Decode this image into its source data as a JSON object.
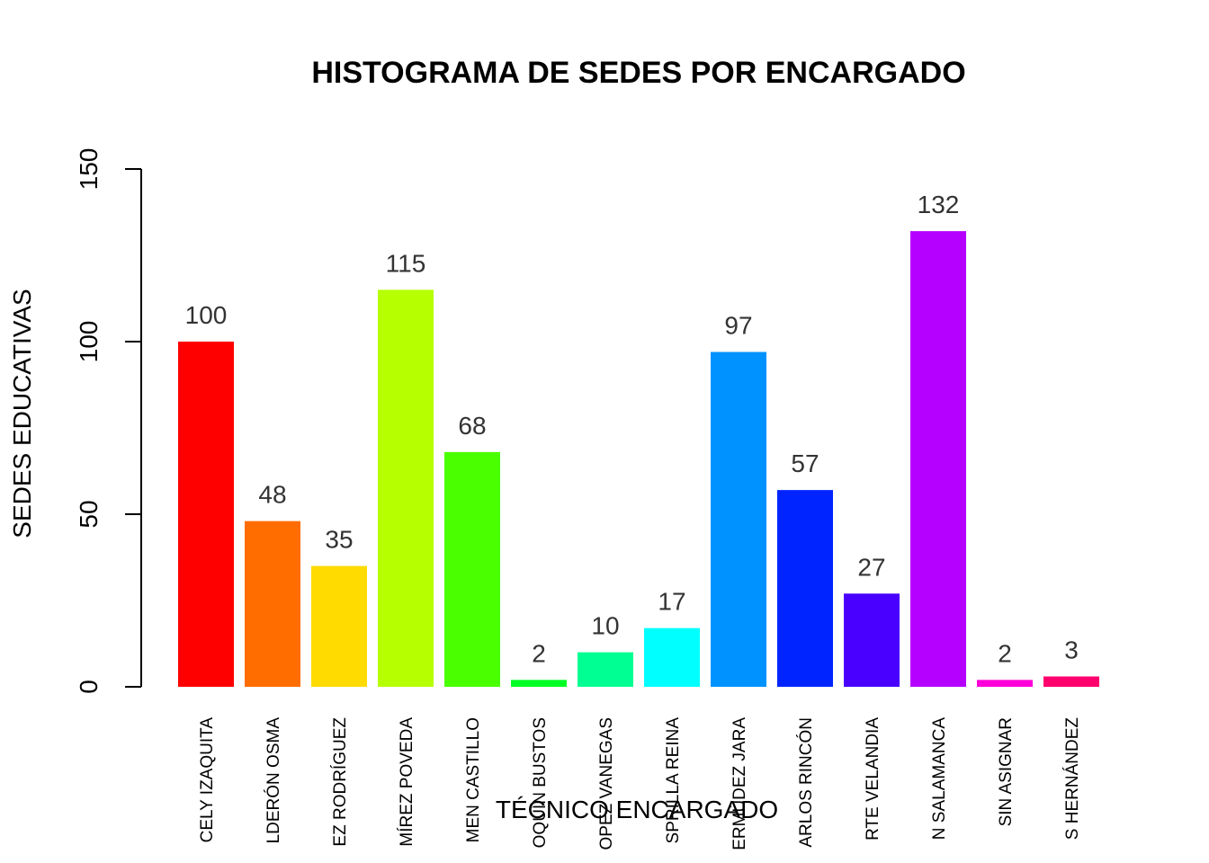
{
  "chart_data": {
    "type": "bar",
    "title": "HISTOGRAMA DE SEDES POR ENCARGADO",
    "xlabel": "TÉCNICO ENCARGADO",
    "ylabel": "SEDES EDUCATIVAS",
    "ylim": [
      0,
      150
    ],
    "yticks": [
      0,
      50,
      100,
      150
    ],
    "grid": false,
    "legend": "none",
    "categories": [
      "CELY IZAQUITA",
      "LDERÓN OSMA",
      "EZ RODRÍGUEZ",
      "MÍREZ POVEDA",
      "MEN CASTILLO",
      "OQUÍN BUSTOS",
      "OPEZ VANEGAS",
      "SPRILLA REINA",
      "ERMÚDEZ JARA",
      "ARLOS RINCÓN",
      "RTE VELANDIA",
      "N SALAMANCA",
      "SIN ASIGNAR",
      "S HERNÁNDEZ"
    ],
    "values": [
      100,
      48,
      35,
      115,
      68,
      2,
      10,
      17,
      97,
      57,
      27,
      132,
      2,
      3
    ],
    "colors": [
      "#FF0000",
      "#FF6D00",
      "#FFDB00",
      "#B6FF00",
      "#49FF00",
      "#00FF24",
      "#00FF92",
      "#00FFFF",
      "#0092FF",
      "#0024FF",
      "#4900FF",
      "#B600FF",
      "#FF00DB",
      "#FF006D"
    ]
  }
}
